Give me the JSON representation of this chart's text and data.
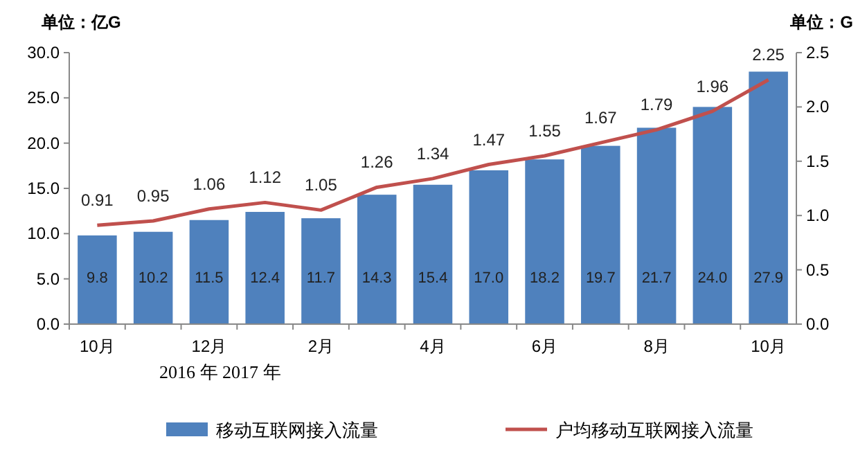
{
  "chart_data": {
    "type": "bar",
    "ylabel": "单位：亿G",
    "y2label": "单位：G",
    "categories": [
      "10月",
      null,
      "12月",
      null,
      "2月",
      null,
      "4月",
      null,
      "6月",
      null,
      "8月",
      null,
      "10月"
    ],
    "series": [
      {
        "name": "移动互联网接入流量",
        "color": "#4f81bd",
        "values": [
          9.8,
          10.2,
          11.5,
          12.4,
          11.7,
          14.3,
          15.4,
          17.0,
          18.2,
          19.7,
          21.7,
          24.0,
          27.9
        ],
        "value_labels": [
          "9.8",
          "10.2",
          "11.5",
          "12.4",
          "11.7",
          "14.3",
          "15.4",
          "17.0",
          "18.2",
          "19.7",
          "21.7",
          "24.0",
          "27.9"
        ]
      },
      {
        "name": "户均移动互联网接入流量",
        "type": "line",
        "axis": "y2",
        "color": "#c0504d",
        "values": [
          0.91,
          0.95,
          1.06,
          1.12,
          1.05,
          1.26,
          1.34,
          1.47,
          1.55,
          1.67,
          1.79,
          1.96,
          2.25
        ],
        "value_labels": [
          "0.91",
          "0.95",
          "1.06",
          "1.12",
          "1.05",
          "1.26",
          "1.34",
          "1.47",
          "1.55",
          "1.67",
          "1.79",
          "1.96",
          "2.25"
        ]
      }
    ],
    "ylim": [
      0,
      30
    ],
    "yticks": [
      {
        "value": 0,
        "label": "0.0"
      },
      {
        "value": 5,
        "label": "5.0"
      },
      {
        "value": 10,
        "label": "10.0"
      },
      {
        "value": 15,
        "label": "15.0"
      },
      {
        "value": 20,
        "label": "20.0"
      },
      {
        "value": 25,
        "label": "25.0"
      },
      {
        "value": 30,
        "label": "30.0"
      }
    ],
    "y2lim": [
      0,
      2.5
    ],
    "y2ticks": [
      {
        "value": 0,
        "label": "0.0"
      },
      {
        "value": 0.5,
        "label": "0.5"
      },
      {
        "value": 1,
        "label": "1.0"
      },
      {
        "value": 1.5,
        "label": "1.5"
      },
      {
        "value": 2,
        "label": "2.0"
      },
      {
        "value": 2.5,
        "label": "2.5"
      }
    ],
    "annotations": [
      "2016 年 2017 年"
    ],
    "legend": "bottom",
    "marker": "none",
    "line_style": "solid"
  }
}
